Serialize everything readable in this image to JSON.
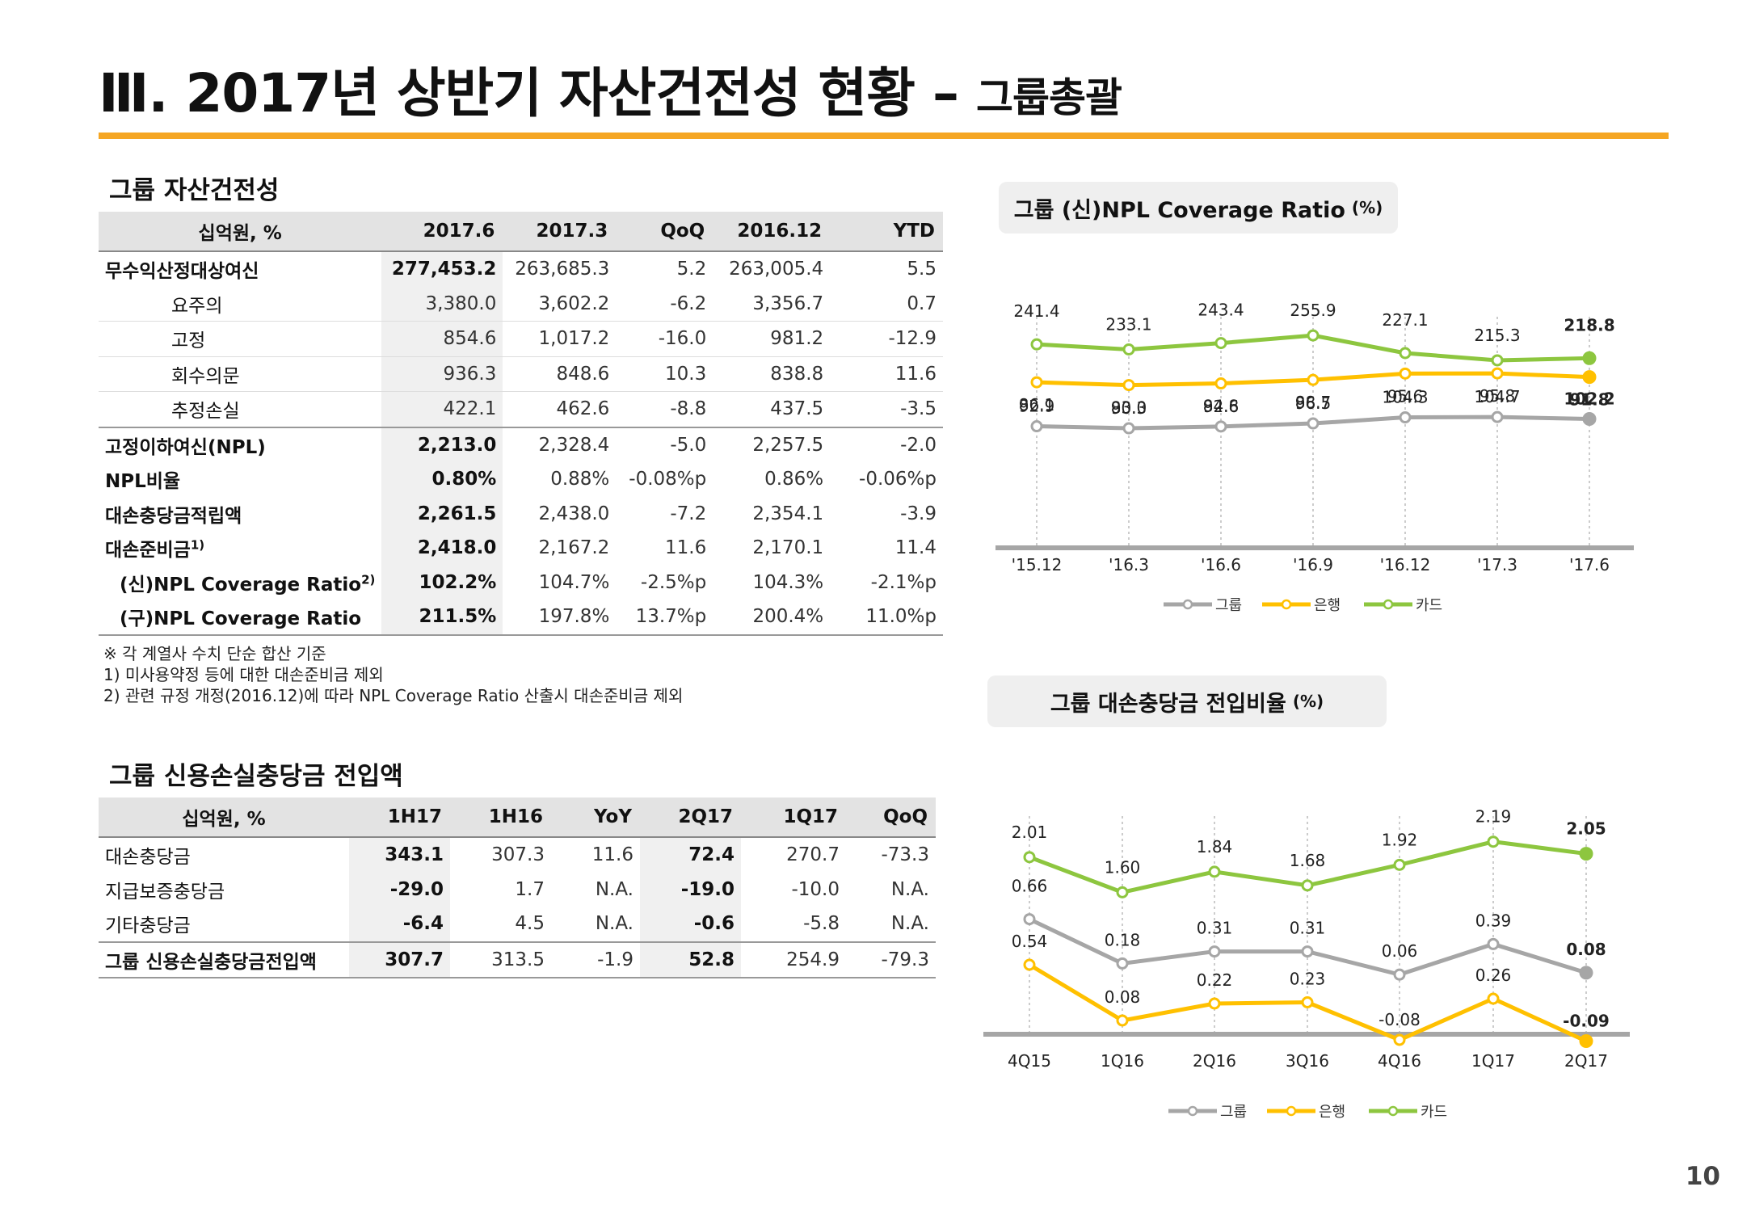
{
  "title": {
    "main": "Ⅲ. 2017년 상반기 자산건전성 현황 – ",
    "sub": "그룹총괄"
  },
  "page_number": "10",
  "table1": {
    "title": "그룹 자산건전성",
    "headers": [
      "십억원, %",
      "2017.6",
      "2017.3",
      "QoQ",
      "2016.12",
      "YTD"
    ],
    "rows": [
      {
        "label": "무수익산정대상여신",
        "values": [
          "277,453.2",
          "263,685.3",
          "5.2",
          "263,005.4",
          "5.5"
        ]
      },
      {
        "label": "요주의",
        "values": [
          "3,380.0",
          "3,602.2",
          "-6.2",
          "3,356.7",
          "0.7"
        ]
      },
      {
        "label": "고정",
        "values": [
          "854.6",
          "1,017.2",
          "-16.0",
          "981.2",
          "-12.9"
        ]
      },
      {
        "label": "회수의문",
        "values": [
          "936.3",
          "848.6",
          "10.3",
          "838.8",
          "11.6"
        ]
      },
      {
        "label": "추정손실",
        "values": [
          "422.1",
          "462.6",
          "-8.8",
          "437.5",
          "-3.5"
        ]
      },
      {
        "label": "고정이하여신(NPL)",
        "values": [
          "2,213.0",
          "2,328.4",
          "-5.0",
          "2,257.5",
          "-2.0"
        ]
      },
      {
        "label": "NPL비율",
        "values": [
          "0.80%",
          "0.88%",
          "-0.08%p",
          "0.86%",
          "-0.06%p"
        ]
      },
      {
        "label": "대손충당금적립액",
        "values": [
          "2,261.5",
          "2,438.0",
          "-7.2",
          "2,354.1",
          "-3.9"
        ]
      },
      {
        "label": "대손준비금",
        "sup": "1)",
        "values": [
          "2,418.0",
          "2,167.2",
          "11.6",
          "2,170.1",
          "11.4"
        ]
      },
      {
        "label": "(신)NPL Coverage Ratio",
        "sup": "2)",
        "values": [
          "102.2%",
          "104.7%",
          "-2.5%p",
          "104.3%",
          "-2.1%p"
        ]
      },
      {
        "label": "(구)NPL Coverage Ratio",
        "values": [
          "211.5%",
          "197.8%",
          "13.7%p",
          "200.4%",
          "11.0%p"
        ]
      }
    ]
  },
  "notes": [
    "※ 각 계열사 수치 단순 합산 기준",
    "1) 미사용약정 등에 대한 대손준비금 제외",
    "2) 관련 규정 개정(2016.12)에 따라 NPL Coverage Ratio 산출시 대손준비금 제외"
  ],
  "table2": {
    "title": "그룹 신용손실충당금 전입액",
    "headers": [
      "십억원, %",
      "1H17",
      "1H16",
      "YoY",
      "2Q17",
      "1Q17",
      "QoQ"
    ],
    "rows": [
      {
        "label": "대손충당금",
        "values": [
          "343.1",
          "307.3",
          "11.6",
          "72.4",
          "270.7",
          "-73.3"
        ]
      },
      {
        "label": "지급보증충당금",
        "values": [
          "-29.0",
          "1.7",
          "N.A.",
          "-19.0",
          "-10.0",
          "N.A."
        ]
      },
      {
        "label": "기타충당금",
        "values": [
          "-6.4",
          "4.5",
          "N.A.",
          "-0.6",
          "-5.8",
          "N.A."
        ]
      },
      {
        "label": "그룹 신용손실충당금전입액",
        "values": [
          "307.7",
          "313.5",
          "-1.9",
          "52.8",
          "254.9",
          "-79.3"
        ]
      }
    ]
  },
  "chart_data": [
    {
      "type": "line",
      "title": "그룹 (신)NPL Coverage Ratio",
      "unit": "(%)",
      "categories": [
        "'15.12",
        "'16.3",
        "'16.6",
        "'16.9",
        "'16.12",
        "'17.3",
        "'17.6"
      ],
      "series": [
        {
          "name": "그룹",
          "color": "#a6a6a6",
          "values": [
            92.9,
            90.3,
            92.6,
            96.5,
            104.3,
            104.7,
            102.2
          ],
          "labels": [
            "92.9",
            "90.3",
            "92.6",
            "96.5",
            "104.3",
            "104.7",
            "102.2"
          ]
        },
        {
          "name": "은행",
          "color": "#ffc000",
          "values": [
            86.1,
            83.0,
            84.8,
            88.7,
            95.6,
            95.8,
            91.8
          ],
          "labels": [
            "86.1",
            "83.0",
            "84.8",
            "88.7",
            "95.6",
            "95.8",
            "91.8"
          ]
        },
        {
          "name": "카드",
          "color": "#8dc63f",
          "values": [
            241.4,
            233.1,
            243.4,
            255.9,
            227.1,
            215.3,
            218.8
          ],
          "labels": [
            "241.4",
            "233.1",
            "243.4",
            "255.9",
            "227.1",
            "215.3",
            "218.8"
          ]
        }
      ],
      "legend": "bottom"
    },
    {
      "type": "line",
      "title": "그룹 대손충당금 전입비율",
      "unit": "(%)",
      "categories": [
        "4Q15",
        "1Q16",
        "2Q16",
        "3Q16",
        "4Q16",
        "1Q17",
        "2Q17"
      ],
      "series": [
        {
          "name": "그룹",
          "color": "#a6a6a6",
          "values": [
            0.66,
            0.18,
            0.31,
            0.31,
            0.06,
            0.39,
            0.08
          ],
          "labels": [
            "0.66",
            "0.18",
            "0.31",
            "0.31",
            "0.06",
            "0.39",
            "0.08"
          ]
        },
        {
          "name": "은행",
          "color": "#ffc000",
          "values": [
            0.54,
            0.08,
            0.22,
            0.23,
            -0.08,
            0.26,
            -0.09
          ],
          "labels": [
            "0.54",
            "0.08",
            "0.22",
            "0.23",
            "-0.08",
            "0.26",
            "-0.09"
          ]
        },
        {
          "name": "카드",
          "color": "#8dc63f",
          "values": [
            2.01,
            1.6,
            1.84,
            1.68,
            1.92,
            2.19,
            2.05
          ],
          "labels": [
            "2.01",
            "1.60",
            "1.84",
            "1.68",
            "1.92",
            "2.19",
            "2.05"
          ]
        }
      ],
      "legend": "bottom"
    }
  ]
}
